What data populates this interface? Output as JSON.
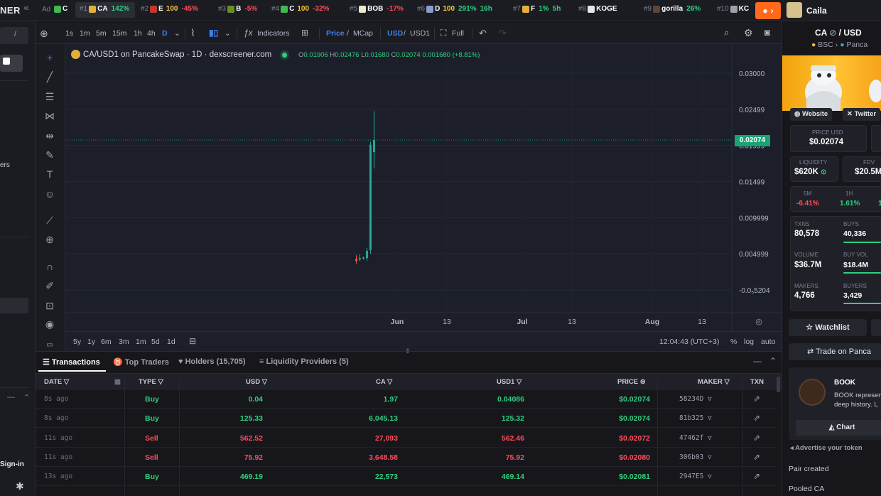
{
  "brand": "NER",
  "ad_tag": "Ad",
  "ticker": [
    {
      "rank": "",
      "symbol": "C",
      "change": "",
      "dir": "",
      "boost": "",
      "color": "#3fb950"
    },
    {
      "rank": "#1",
      "symbol": "CA",
      "change": "142%",
      "dir": "up",
      "boost": "",
      "color": "#e3b13a"
    },
    {
      "rank": "#2",
      "symbol": "E",
      "change": "-45%",
      "dir": "dn",
      "boost": "100",
      "color": "#c0392b"
    },
    {
      "rank": "#3",
      "symbol": "B",
      "change": "-5%",
      "dir": "dn",
      "boost": "",
      "color": "#6b8e23"
    },
    {
      "rank": "#4",
      "symbol": "C",
      "change": "-32%",
      "dir": "dn",
      "boost": "100",
      "color": "#3fb950"
    },
    {
      "rank": "#5",
      "symbol": "BOB",
      "change": "-17%",
      "dir": "dn",
      "boost": "",
      "color": "#f0e6c8"
    },
    {
      "rank": "#6",
      "symbol": "D",
      "change": "291%",
      "dir": "up",
      "boost": "100",
      "color": "#8a9bd0",
      "extra": "16h"
    },
    {
      "rank": "#7",
      "symbol": "F",
      "change": "1%",
      "dir": "up",
      "boost": "",
      "color": "#e3b13a",
      "extra": "5h"
    },
    {
      "rank": "#8",
      "symbol": "KOGE",
      "change": "",
      "dir": "",
      "boost": "",
      "color": "#e6e7ec"
    },
    {
      "rank": "#9",
      "symbol": "gorilla",
      "change": "26%",
      "dir": "up",
      "boost": "",
      "color": "#5b4636"
    },
    {
      "rank": "#10",
      "symbol": "KC",
      "change": "",
      "dir": "",
      "boost": "",
      "color": "#9ea1ad"
    }
  ],
  "user": {
    "name": "Caila"
  },
  "left_sidebar": {
    "partial_label": "ers",
    "signin": "Sign-in"
  },
  "toolbar": {
    "intervals": [
      "1s",
      "1m",
      "5m",
      "15m",
      "1h",
      "4h",
      "D"
    ],
    "active_interval": "D",
    "indicators": "Indicators",
    "price_label": "Price",
    "mcap_label": "MCap",
    "usd_label": "USD",
    "quote_label": "USD1",
    "full_label": "Full"
  },
  "chart": {
    "title": "CA/USD1 on PancakeSwap · 1D · dexscreener.com",
    "ohlc": {
      "o": "0.01906",
      "h": "0.02476",
      "l": "0.01680",
      "c": "0.02074",
      "chg": "0.001680 (+8.81%)"
    },
    "current_price": "0.02074",
    "time": "12:04:43 (UTC+3)",
    "ranges": [
      "5y",
      "1y",
      "6m",
      "3m",
      "1m",
      "5d",
      "1d"
    ],
    "opts": [
      "%",
      "log",
      "auto"
    ]
  },
  "chart_data": {
    "type": "candlestick",
    "x_labels": [
      "Jun",
      "13",
      "Jul",
      "13",
      "Aug",
      "13"
    ],
    "y_labels": [
      "0.03000",
      "0.02499",
      "0.01999",
      "0.01499",
      "0.009999",
      "0.004999",
      "-0.0₅5204"
    ],
    "ylim": [
      -5.2e-06,
      0.03
    ],
    "candles": [
      {
        "o": 0.0043,
        "h": 0.0048,
        "l": 0.0036,
        "c": 0.004
      },
      {
        "o": 0.0042,
        "h": 0.0049,
        "l": 0.004,
        "c": 0.0044
      },
      {
        "o": 0.0044,
        "h": 0.0046,
        "l": 0.0042,
        "c": 0.0045
      },
      {
        "o": 0.0044,
        "h": 0.0058,
        "l": 0.004,
        "c": 0.0054
      },
      {
        "o": 0.0055,
        "h": 0.0205,
        "l": 0.005,
        "c": 0.0201
      },
      {
        "o": 0.01906,
        "h": 0.02476,
        "l": 0.0168,
        "c": 0.02074
      }
    ],
    "colors": {
      "up": "#26a69a",
      "down": "#ef5350",
      "price_line": "#17a673"
    }
  },
  "tabs": [
    {
      "label": "Transactions",
      "active": true
    },
    {
      "label": "Top Traders",
      "active": false
    },
    {
      "label": "Holders (15,705)",
      "active": false
    },
    {
      "label": "Liquidity Providers (5)",
      "active": false
    }
  ],
  "table": {
    "headers": {
      "date": "DATE",
      "type": "TYPE",
      "usd": "USD",
      "token": "CA",
      "quote": "USD1",
      "price": "PRICE",
      "maker": "MAKER",
      "txn": "TXN"
    },
    "rows": [
      {
        "date": "8s ago",
        "type": "Buy",
        "usd": "0.04",
        "token": "1.97",
        "quote": "0.04086",
        "price": "$0.02074",
        "maker": "58234D"
      },
      {
        "date": "8s ago",
        "type": "Buy",
        "usd": "125.33",
        "token": "6,045.13",
        "quote": "125.32",
        "price": "$0.02074",
        "maker": "81b325"
      },
      {
        "date": "11s ago",
        "type": "Sell",
        "usd": "562.52",
        "token": "27,093",
        "quote": "562.46",
        "price": "$0.02072",
        "maker": "47462f"
      },
      {
        "date": "11s ago",
        "type": "Sell",
        "usd": "75.92",
        "token": "3,648.58",
        "quote": "75.92",
        "price": "$0.02080",
        "maker": "306b03"
      },
      {
        "date": "13s ago",
        "type": "Buy",
        "usd": "469.19",
        "token": "22,573",
        "quote": "469.14",
        "price": "$0.02081",
        "maker": "2947E5"
      }
    ]
  },
  "pair_panel": {
    "pair": "CA",
    "quote": "USD",
    "chain": "BSC",
    "dex": "Panca",
    "website": "Website",
    "twitter": "Twitter",
    "price_usd_label": "PRICE USD",
    "price_usd": "$0.02074",
    "liquidity_label": "LIQUIDITY",
    "liquidity": "$620K",
    "fdv_label": "FDV",
    "fdv": "$20.5M",
    "m5_label": "5M",
    "m5": "-6.41%",
    "h1_label": "1H",
    "h1": "1.61%",
    "txns_label": "TXNS",
    "txns": "80,578",
    "buys_label": "BUYS",
    "buys": "40,336",
    "volume_label": "VOLUME",
    "volume": "$36.7M",
    "buy_vol_label": "BUY VOL",
    "buy_vol": "$18.4M",
    "makers_label": "MAKERS",
    "makers": "4,766",
    "buyers_label": "BUYERS",
    "buyers": "3,429",
    "watchlist": "Watchlist",
    "trade": "Trade on Panca",
    "book_title": "BOOK",
    "book_desc": "BOOK represen deep history. L",
    "chart_btn": "Chart",
    "advertise": "Advertise your token",
    "pair_created": "Pair created",
    "pooled": "Pooled CA"
  }
}
